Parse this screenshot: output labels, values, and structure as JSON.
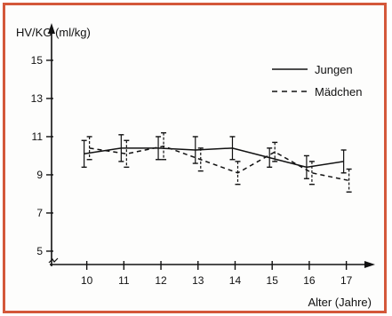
{
  "colors": {
    "border": "#d4583a",
    "ink": "#111111",
    "background": "#fdfdfc"
  },
  "chart_data": {
    "type": "line",
    "ylabel": "HV/KG (ml/kg)",
    "xlabel": "Alter (Jahre)",
    "x": [
      10,
      11,
      12,
      13,
      14,
      15,
      16,
      17
    ],
    "xlim": [
      9.05,
      17.8
    ],
    "ylim": [
      4.3,
      16.3
    ],
    "yticks": [
      5,
      7,
      9,
      11,
      13,
      15
    ],
    "legend_position": "top-right",
    "grid": false,
    "series": [
      {
        "name": "Jungen",
        "style": "solid",
        "values": [
          10.1,
          10.4,
          10.4,
          10.3,
          10.4,
          9.9,
          9.4,
          9.7
        ],
        "error": [
          0.7,
          0.7,
          0.6,
          0.7,
          0.6,
          0.5,
          0.6,
          0.6
        ]
      },
      {
        "name": "Mädchen",
        "style": "dashed",
        "values": [
          10.4,
          10.1,
          10.5,
          9.8,
          9.1,
          10.2,
          9.1,
          8.7
        ],
        "error": [
          0.6,
          0.7,
          0.7,
          0.6,
          0.6,
          0.5,
          0.6,
          0.6
        ]
      }
    ]
  }
}
